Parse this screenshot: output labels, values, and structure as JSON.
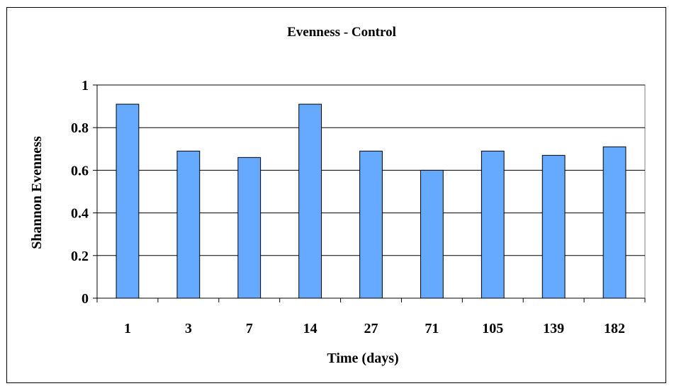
{
  "chart_data": {
    "type": "bar",
    "title": "Evenness - Control",
    "xlabel": "Time (days)",
    "ylabel": "Shannon Evenness",
    "categories": [
      "1",
      "3",
      "7",
      "14",
      "27",
      "71",
      "105",
      "139",
      "182"
    ],
    "values": [
      0.91,
      0.69,
      0.66,
      0.91,
      0.69,
      0.6,
      0.69,
      0.67,
      0.71
    ],
    "ylim": [
      0,
      1
    ],
    "yticks": [
      "0",
      "0.2",
      "0.4",
      "0.6",
      "0.8",
      "1"
    ],
    "grid": true,
    "legend": "none",
    "colors": {
      "bar": "#66aaff",
      "bar_stroke": "#000000",
      "grid": "#000000"
    }
  }
}
